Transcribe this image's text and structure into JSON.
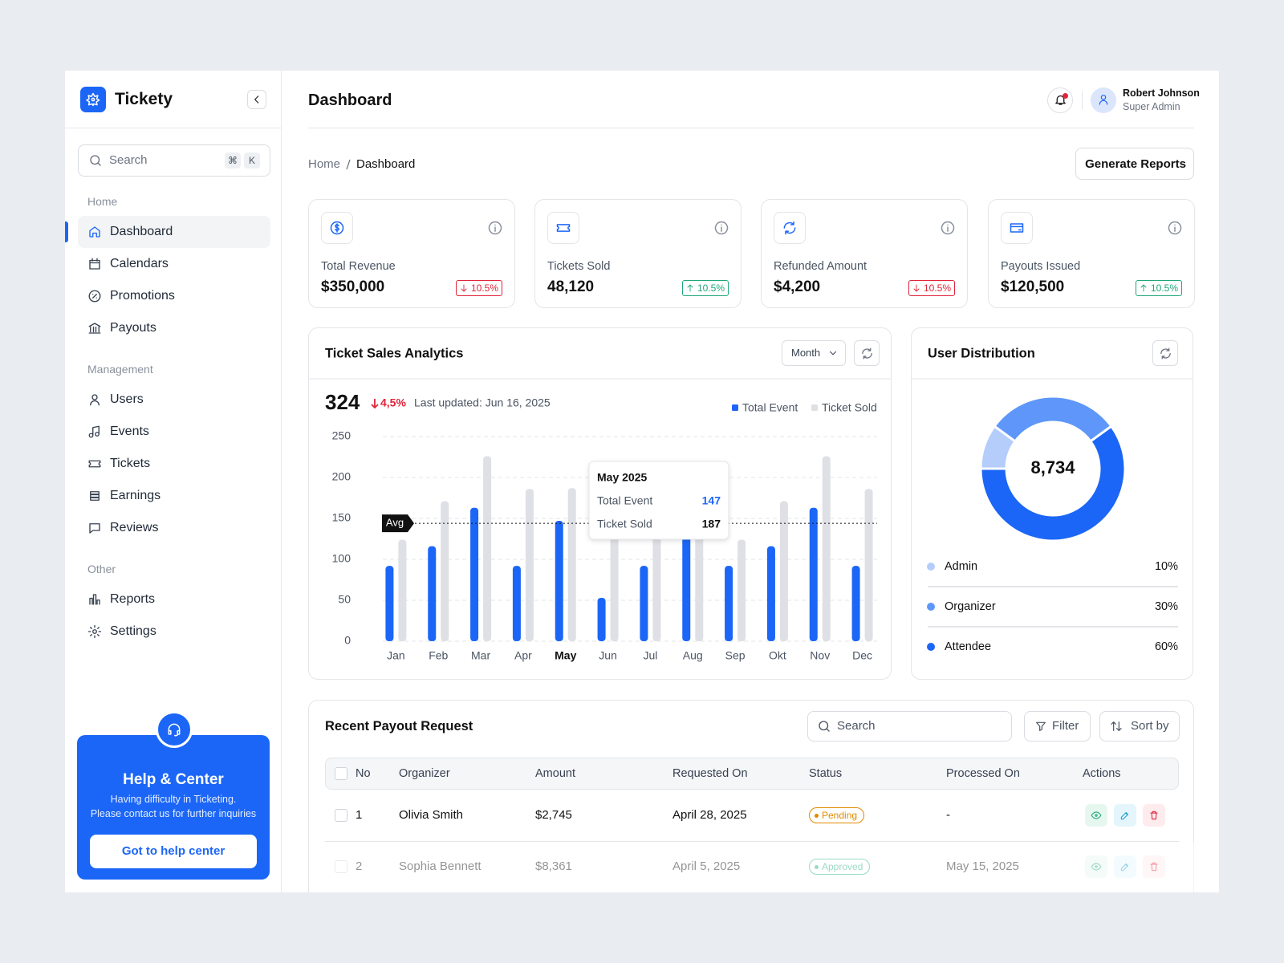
{
  "sidebar": {
    "brand": "Tickety",
    "search": "Search",
    "shortcut": [
      "⌘",
      "K"
    ],
    "sections": [
      {
        "title": "Home",
        "items": [
          "Dashboard",
          "Calendars",
          "Promotions",
          "Payouts"
        ]
      },
      {
        "title": "Management",
        "items": [
          "Users",
          "Events",
          "Tickets",
          "Earnings",
          "Reviews"
        ]
      },
      {
        "title": "Other",
        "items": [
          "Reports",
          "Settings"
        ]
      }
    ],
    "help": {
      "title": "Help & Center",
      "lines": [
        "Having difficulty in Ticketing.",
        "Please contact us for further inquiries"
      ],
      "button": "Got to help center"
    }
  },
  "header": {
    "title": "Dashboard",
    "user_name": "Robert Johnson",
    "user_role": "Super Admin"
  },
  "breadcrumb": [
    "Home",
    "Dashboard"
  ],
  "actions": {
    "generate": "Generate Reports"
  },
  "stats": [
    {
      "label": "Total Revenue",
      "value": "$350,000",
      "change": "10.5%",
      "trend": "down"
    },
    {
      "label": "Tickets Sold",
      "value": "48,120",
      "change": "10.5%",
      "trend": "up"
    },
    {
      "label": "Refunded Amount",
      "value": "$4,200",
      "change": "10.5%",
      "trend": "down"
    },
    {
      "label": "Payouts Issued",
      "value": "$120,500",
      "change": "10.5%",
      "trend": "up"
    }
  ],
  "chart_data": [
    {
      "type": "bar",
      "title": "Ticket Sales Analytics",
      "period": "Month",
      "headline": 324,
      "change": "4,5%",
      "change_trend": "down",
      "updated": "Last updated: Jun 16, 2025",
      "categories": [
        "Jan",
        "Feb",
        "Mar",
        "Apr",
        "May",
        "Jun",
        "Jul",
        "Aug",
        "Sep",
        "Okt",
        "Nov",
        "Dec"
      ],
      "series": [
        {
          "name": "Total Event",
          "color": "#1b66f6",
          "values": [
            92,
            116,
            163,
            92,
            147,
            53,
            92,
            130,
            92,
            116,
            163,
            92
          ]
        },
        {
          "name": "Ticket Sold",
          "color": "#dfe0e5",
          "values": [
            124,
            171,
            226,
            186,
            187,
            140,
            150,
            140,
            124,
            171,
            226,
            186
          ]
        }
      ],
      "ylim": [
        0,
        250
      ],
      "yticks": [
        0,
        50,
        100,
        150,
        200,
        250
      ],
      "grid": true,
      "average": {
        "label": "Avg",
        "value": 144
      },
      "tooltip": {
        "title": "May 2025",
        "index": 4
      }
    },
    {
      "type": "pie",
      "title": "User Distribution",
      "total": {
        "value": 8734,
        "label": "8,734"
      },
      "categories": [
        "Admin",
        "Organizer",
        "Attendee"
      ],
      "values": [
        10,
        30,
        60
      ],
      "value_labels": [
        "10%",
        "30%",
        "60%"
      ],
      "colors": [
        "#b4cdfb",
        "#5e97f9",
        "#1b66f6"
      ]
    }
  ],
  "table": {
    "title": "Recent Payout Request",
    "search": "Search",
    "filter": "Filter",
    "sort": "Sort by",
    "columns": [
      "No",
      "Organizer",
      "Amount",
      "Requested On",
      "Status",
      "Processed On",
      "Actions"
    ],
    "rows": [
      {
        "cells": [
          "1",
          "Olivia Smith",
          "$2,745",
          "April 28, 2025",
          "Pending",
          "-"
        ],
        "status_color": "#e08a00"
      },
      {
        "cells": [
          "2",
          "Sophia Bennett",
          "$8,361",
          "April 5, 2025",
          "Approved",
          "May 15, 2025"
        ],
        "status_color": "#22b07d"
      }
    ]
  }
}
